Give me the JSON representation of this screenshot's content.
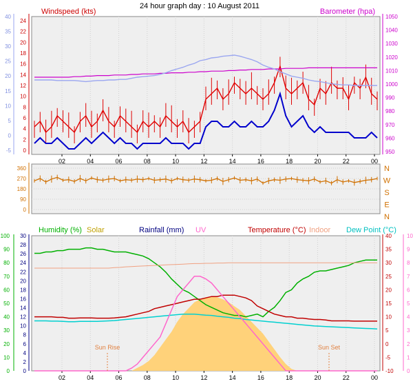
{
  "title": "24 hour graph day : 10 August 2011",
  "colors": {
    "wind": "#e00000",
    "gust": "#e00000",
    "avg": "#0000cc",
    "baro": "#cc00cc",
    "baro_left_axis": "#9aa6f0",
    "winddir": "#d07000",
    "humidity": "#00b000",
    "solar": "#f0c000",
    "solar_fill": "#ffd27a",
    "rain": "#000080",
    "uv": "#ff66cc",
    "temp": "#c00000",
    "indoor": "#f0a080",
    "dew": "#00d0d0",
    "sun_marker": "#e08040"
  },
  "chart_data": [
    {
      "type": "line",
      "panel": "wind",
      "x_ticks": [
        "02",
        "04",
        "06",
        "08",
        "10",
        "12",
        "14",
        "16",
        "18",
        "20",
        "22",
        "00"
      ],
      "left_label": "Windspeed (kts)",
      "right_label": "Barometer (hpa)",
      "left_ticks": [
        "24",
        "22",
        "20",
        "18",
        "16",
        "14",
        "12",
        "10",
        "8",
        "6",
        "4",
        "2",
        "0"
      ],
      "left_ticks_outer": [
        "40",
        "35",
        "30",
        "25",
        "20",
        "15",
        "10",
        "5",
        "0",
        "-5"
      ],
      "right_ticks": [
        "1050",
        "1040",
        "1030",
        "1020",
        "1010",
        "1000",
        "990",
        "980",
        "970",
        "960",
        "950"
      ],
      "ylim": [
        0,
        25
      ],
      "series": [
        {
          "key": "gust",
          "color": "#e00000",
          "values": [
            5,
            6,
            4,
            5,
            7,
            6,
            5,
            4,
            6,
            7,
            5,
            6,
            8,
            6,
            5,
            7,
            6,
            5,
            4,
            6,
            5,
            6,
            5,
            7,
            6,
            5,
            6,
            4,
            5,
            6,
            10,
            11,
            12,
            10,
            11,
            13,
            12,
            11,
            12,
            11,
            10,
            11,
            13,
            16,
            12,
            11,
            12,
            13,
            10,
            9,
            12,
            11,
            13,
            12,
            12,
            10,
            13,
            12,
            14,
            11,
            10
          ]
        },
        {
          "key": "avg",
          "color": "#0000cc",
          "values": [
            2,
            3,
            2,
            2,
            3,
            2,
            1,
            1,
            2,
            3,
            2,
            3,
            4,
            3,
            2,
            3,
            2,
            2,
            1,
            2,
            2,
            2,
            2,
            3,
            2,
            2,
            2,
            1,
            2,
            2,
            5,
            6,
            6,
            5,
            5,
            6,
            5,
            5,
            6,
            5,
            5,
            6,
            8,
            11,
            7,
            5,
            6,
            7,
            5,
            4,
            5,
            4,
            4,
            4,
            4,
            4,
            3,
            3,
            3,
            4,
            3
          ]
        },
        {
          "key": "baro",
          "color": "#cc00cc",
          "values": [
            14,
            14,
            14,
            14,
            14,
            14,
            14,
            14.1,
            14.1,
            14.2,
            14.2,
            14.3,
            14.3,
            14.3,
            14.4,
            14.4,
            14.4,
            14.5,
            14.5,
            14.6,
            14.6,
            14.6,
            14.7,
            14.7,
            14.8,
            14.8,
            14.8,
            14.9,
            14.9,
            15,
            15,
            15.1,
            15.1,
            15.1,
            15.2,
            15.2,
            15.3,
            15.3,
            15.4,
            15.4,
            15.4,
            15.5,
            15.5,
            15.5,
            15.6,
            15.6,
            15.6,
            15.6,
            15.7,
            15.7,
            15.7,
            15.7,
            15.7,
            15.7,
            15.7,
            15.7,
            15.7,
            15.7,
            15.7,
            15.7,
            15.7
          ]
        },
        {
          "key": "baro_left",
          "color": "#9aa6f0",
          "values": [
            13.5,
            13.5,
            13.5,
            13.5,
            13.4,
            13.4,
            13.4,
            13.4,
            13.3,
            13.2,
            13.3,
            13.4,
            13.4,
            13.5,
            13.5,
            13.6,
            13.6,
            13.8,
            14,
            14.1,
            14.2,
            14.3,
            14.5,
            14.8,
            15.2,
            15.5,
            15.8,
            16.2,
            16.5,
            17,
            17.2,
            17.5,
            17.6,
            17.8,
            17.9,
            18,
            17.8,
            17.5,
            17.2,
            16.8,
            16.2,
            15.8,
            15.5,
            15,
            14.6,
            14.2,
            14,
            13.8,
            13.5,
            13.3,
            13.2,
            13,
            12.8,
            12.7,
            12.6,
            12.6,
            12.5,
            12.5,
            12.5,
            12.5,
            12.5
          ]
        }
      ]
    },
    {
      "type": "line",
      "panel": "wind_direction",
      "left_ticks": [
        "360",
        "270",
        "180",
        "90",
        "0"
      ],
      "right_labels": [
        "N",
        "W",
        "S",
        "E",
        "N"
      ],
      "ylim": [
        0,
        360
      ],
      "series": [
        {
          "key": "winddir",
          "color": "#d07000",
          "values": [
            250,
            270,
            240,
            265,
            280,
            255,
            260,
            245,
            270,
            250,
            275,
            260,
            255,
            265,
            270,
            250,
            260,
            255,
            265,
            260,
            270,
            255,
            260,
            265,
            250,
            270,
            260,
            255,
            265,
            260,
            250,
            255,
            270,
            245,
            260,
            275,
            255,
            260,
            250,
            265,
            230,
            250,
            260,
            255,
            265,
            270,
            260,
            255,
            250,
            265,
            240,
            250,
            230,
            260,
            240,
            250,
            235,
            245,
            255,
            260,
            270
          ]
        }
      ]
    },
    {
      "type": "line",
      "panel": "weather",
      "labels": {
        "humidity": "Humidity (%)",
        "solar": "Solar",
        "rainfall": "Rainfall (mm)",
        "uv": "UV",
        "temperature": "Temperature (°C)",
        "indoor": "Indoor",
        "dew": "Dew Point (°C)"
      },
      "annotations": [
        "Sun Rise",
        "Sun Set"
      ],
      "axis_humidity": [
        "100",
        "90",
        "80",
        "70",
        "60",
        "50",
        "40",
        "30",
        "20",
        "10",
        "0"
      ],
      "axis_rain": [
        "30",
        "28",
        "26",
        "24",
        "22",
        "20",
        "18",
        "16",
        "14",
        "12",
        "10",
        "8",
        "6",
        "4",
        "2",
        "0"
      ],
      "axis_temp": [
        "40",
        "35",
        "30",
        "25",
        "20",
        "15",
        "10",
        "5",
        "0",
        "-5",
        "-10"
      ],
      "axis_uv": [
        "10",
        "9",
        "8",
        "7",
        "6",
        "5",
        "4",
        "3",
        "2",
        "1",
        "0"
      ],
      "ylim": [
        -10,
        40
      ],
      "series": [
        {
          "key": "humidity",
          "color": "#00b000",
          "values": [
            87,
            87,
            88,
            88,
            89,
            89,
            90,
            90,
            90,
            91,
            91,
            90,
            90,
            89,
            88,
            88,
            88,
            87,
            86,
            85,
            83,
            80,
            77,
            73,
            68,
            64,
            60,
            58,
            55,
            52,
            49,
            47,
            45,
            43,
            42,
            41,
            41,
            40,
            41,
            42,
            40,
            44,
            47,
            52,
            58,
            60,
            65,
            68,
            70,
            73,
            74,
            74,
            75,
            76,
            77,
            78,
            80,
            81,
            82,
            82,
            82
          ]
        },
        {
          "key": "temp",
          "color": "#c00000",
          "values": [
            10,
            10,
            10,
            10,
            9.8,
            9.8,
            9.5,
            9.5,
            9.6,
            9.6,
            9.6,
            9.5,
            9.5,
            9.5,
            9.6,
            9.8,
            10,
            10.5,
            11,
            11.5,
            12,
            13,
            13.5,
            14,
            14.5,
            15,
            15.5,
            16,
            16.5,
            16.5,
            17,
            17.5,
            17.5,
            18,
            18,
            18,
            17.5,
            17,
            16,
            14,
            13,
            12,
            11,
            10.5,
            10,
            10,
            9.5,
            9.5,
            9.2,
            9,
            9,
            8.8,
            8.5,
            8.5,
            8.5,
            8.5,
            8.4,
            8.4,
            8.4,
            8.4,
            8.4
          ]
        },
        {
          "key": "indoor",
          "color": "#f0a080",
          "values": [
            28,
            28,
            28,
            28,
            28,
            28,
            28,
            28,
            28,
            28,
            28,
            28,
            28,
            28,
            28.2,
            28.3,
            28.5,
            28.6,
            28.7,
            28.8,
            28.9,
            29,
            29.1,
            29.2,
            29.3,
            29.4,
            29.5,
            29.6,
            29.7,
            29.7,
            29.8,
            29.8,
            29.9,
            29.9,
            30,
            30,
            30,
            30,
            30,
            30,
            30,
            30,
            30,
            30,
            30,
            30,
            30,
            30,
            30,
            30,
            30,
            30,
            30,
            30,
            30,
            30,
            30,
            30,
            30,
            30,
            30
          ]
        },
        {
          "key": "dew",
          "color": "#00d0d0",
          "values": [
            8.5,
            8.5,
            8.5,
            8.4,
            8.4,
            8.3,
            8.2,
            8.2,
            8.3,
            8.3,
            8.3,
            8.3,
            8.4,
            8.5,
            8.6,
            8.8,
            9,
            9.2,
            9.4,
            9.6,
            9.8,
            10,
            10.2,
            10.4,
            10.6,
            10.8,
            11,
            11,
            11,
            10.8,
            10.6,
            10.5,
            10.2,
            10,
            9.8,
            9.5,
            9.3,
            9,
            8.8,
            8.6,
            8.4,
            8.2,
            8,
            7.8,
            7.6,
            7.4,
            7.2,
            7,
            6.8,
            6.6,
            6.5,
            6.4,
            6.3,
            6.2,
            6.1,
            6,
            5.9,
            5.8,
            5.7,
            5.6,
            5.5
          ]
        },
        {
          "key": "uv",
          "color": "#ff66cc",
          "values": [
            0,
            0,
            0,
            0,
            0,
            0,
            0,
            0,
            0,
            0,
            0,
            0,
            0,
            0,
            0,
            0,
            0,
            0.2,
            0.5,
            1,
            1.5,
            2,
            2.5,
            3.5,
            4.5,
            5.5,
            6,
            6.5,
            7,
            7,
            6.8,
            6.5,
            6,
            5.5,
            5,
            4.5,
            4,
            3.5,
            3,
            2.5,
            2,
            1.5,
            1,
            0.5,
            0,
            0,
            0,
            0,
            0,
            0,
            0,
            0,
            0,
            0,
            0,
            0,
            0,
            0,
            0,
            0,
            0
          ]
        },
        {
          "key": "solar",
          "color": "#ffd27a",
          "values": [
            0,
            0,
            0,
            0,
            0,
            0,
            0,
            0,
            0,
            0,
            0,
            0,
            0,
            0,
            0,
            0,
            0,
            0,
            0.3,
            0.6,
            1,
            1.6,
            2.4,
            3.2,
            4,
            5,
            5.8,
            6.4,
            7,
            7.3,
            7.5,
            7.6,
            7.5,
            7.3,
            7,
            6.6,
            6.2,
            5.6,
            5,
            4.4,
            3.8,
            3,
            2.2,
            1.4,
            0.7,
            0.2,
            0,
            0,
            0,
            0,
            0,
            0,
            0,
            0,
            0,
            0,
            0,
            0,
            0,
            0,
            0
          ]
        }
      ]
    }
  ]
}
